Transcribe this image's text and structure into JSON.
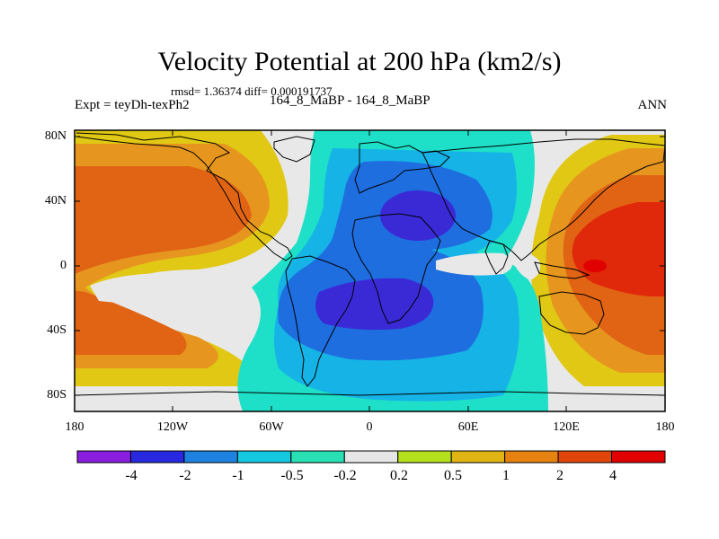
{
  "header": {
    "title": "Velocity Potential at 200 hPa (km2/s)",
    "stats": "rmsd= 1.36374 diff= 0.000191737",
    "expt": "Expt = teyDh-texPh2",
    "case": "164_8_MaBP - 164_8_MaBP",
    "season": "ANN"
  },
  "axes": {
    "lat_labels": [
      "80N",
      "40N",
      "0",
      "40S",
      "80S"
    ],
    "lon_labels": [
      "180",
      "120W",
      "60W",
      "0",
      "60E",
      "120E",
      "180"
    ]
  },
  "colorbar": {
    "labels": [
      "-4",
      "-2",
      "-1",
      "-0.5",
      "-0.2",
      "0.2",
      "0.5",
      "1",
      "2",
      "4"
    ],
    "colors": [
      "#8a1ee0",
      "#2828e0",
      "#1e82e0",
      "#14c8e0",
      "#28e0b4",
      "#e6e6e6",
      "#b4e01e",
      "#e0b414",
      "#e6820f",
      "#e0460a",
      "#e00000"
    ]
  },
  "map_colors": {
    "neg4": "#3a2ad6",
    "neg2": "#1e6ee0",
    "neg1": "#16b4e6",
    "neg05": "#1ee0c8",
    "near0": "#e8e8e8",
    "pos05": "#e0c814",
    "pos1": "#e6961e",
    "pos2": "#e06414",
    "pos4": "#e0280a"
  }
}
